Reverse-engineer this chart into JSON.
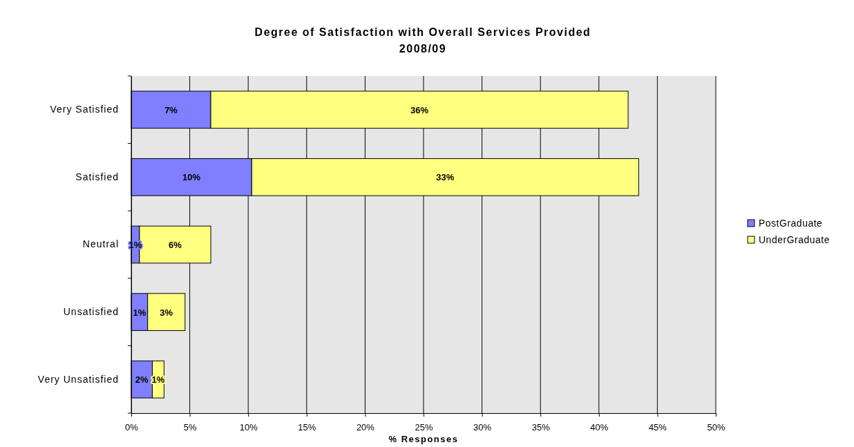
{
  "chart_data": {
    "type": "bar",
    "orientation": "horizontal",
    "stacked": true,
    "title": "Degree of Satisfaction with Overall Services Provided\n2008/09",
    "xlabel": "% Responses",
    "categories": [
      "Very Satisfied",
      "Satisfied",
      "Neutral",
      "Unsatisfied",
      "Very Unsatisfied"
    ],
    "series": [
      {
        "name": "PostGraduate",
        "color": "#7f7fff",
        "values": [
          6.8,
          10.3,
          0.7,
          1.4,
          1.8
        ],
        "value_labels": [
          "7%",
          "10%",
          "1%",
          "1%",
          "2%"
        ]
      },
      {
        "name": "UnderGraduate",
        "color": "#ffff80",
        "values": [
          35.7,
          33.1,
          6.1,
          3.2,
          1.0
        ],
        "value_labels": [
          "36%",
          "33%",
          "6%",
          "3%",
          "1%"
        ]
      }
    ],
    "xlim": [
      0,
      50
    ],
    "xticks": [
      {
        "value": 0,
        "label": "0%"
      },
      {
        "value": 5,
        "label": "5%"
      },
      {
        "value": 10,
        "label": "10%"
      },
      {
        "value": 15,
        "label": "15%"
      },
      {
        "value": 20,
        "label": "20%"
      },
      {
        "value": 25,
        "label": "25%"
      },
      {
        "value": 30,
        "label": "30%"
      },
      {
        "value": 35,
        "label": "35%"
      },
      {
        "value": 40,
        "label": "40%"
      },
      {
        "value": 45,
        "label": "45%"
      },
      {
        "value": 50,
        "label": "50%"
      }
    ],
    "grid": "x",
    "legend": "right"
  }
}
